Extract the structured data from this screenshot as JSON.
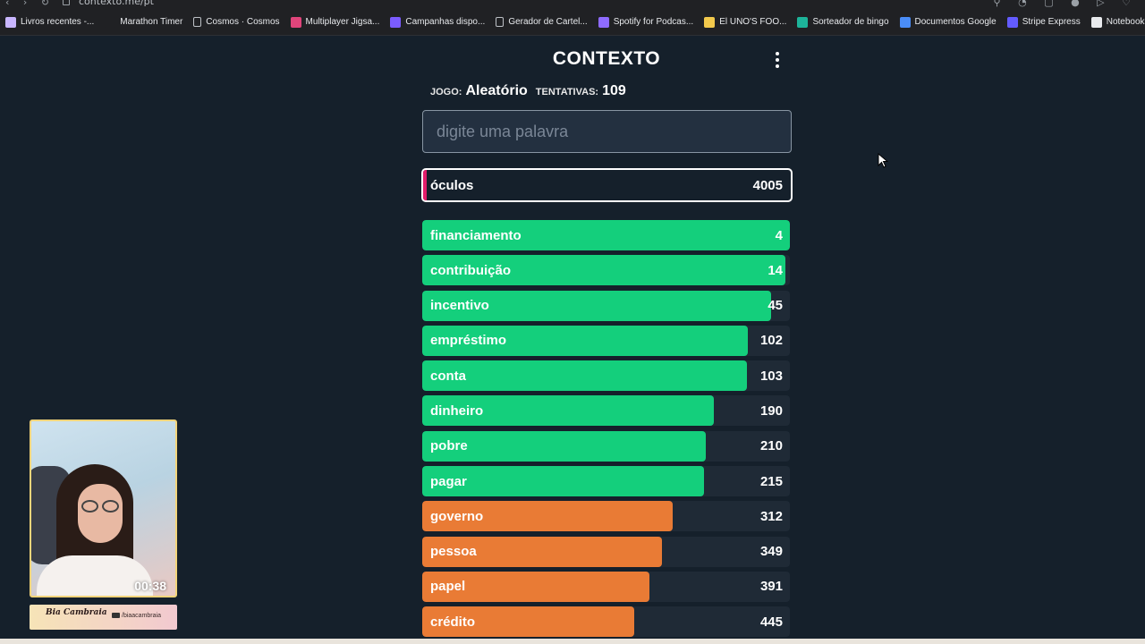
{
  "browser": {
    "url": "contexto.me/pt",
    "bookmarks": [
      {
        "label": "Livros recentes -...",
        "icon": "book-icon",
        "color": "#c9b6ff"
      },
      {
        "label": "Marathon Timer",
        "icon": "timer-icon",
        "color": "#202124"
      },
      {
        "label": "Cosmos · Cosmos",
        "icon": "doc-icon",
        "color": "#bdc1c6"
      },
      {
        "label": "Multiplayer Jigsa...",
        "icon": "puzzle-icon",
        "color": "#e0457b"
      },
      {
        "label": "Campanhas dispo...",
        "icon": "campaign-icon",
        "color": "#7b5cff"
      },
      {
        "label": "Gerador de Cartel...",
        "icon": "doc-icon",
        "color": "#bdc1c6"
      },
      {
        "label": "Spotify for Podcas...",
        "icon": "podcast-icon",
        "color": "#8e6bff"
      },
      {
        "label": "El UNO'S FOO...",
        "icon": "uno-icon",
        "color": "#f2c94c"
      },
      {
        "label": "Sorteador de bingo",
        "icon": "bingo-icon",
        "color": "#1db49a"
      },
      {
        "label": "Documentos Google",
        "icon": "google-docs-icon",
        "color": "#4a8df8"
      },
      {
        "label": "Stripe Express",
        "icon": "stripe-icon",
        "color": "#635bff"
      },
      {
        "label": "NotebookLM",
        "icon": "notebooklm-icon",
        "color": "#e8eaed"
      }
    ]
  },
  "game": {
    "title": "CONTEXTO",
    "game_label": "JOGO:",
    "game_value": "Aleatório",
    "attempts_label": "TENTATIVAS:",
    "attempts_value": "109",
    "input_placeholder": "digite uma palavra",
    "last_guess": {
      "word": "óculos",
      "distance": "4005",
      "accent_color": "#e21c6a"
    },
    "guesses": [
      {
        "word": "financiamento",
        "distance": "4",
        "fill": 1.0,
        "color": "#14cf7c"
      },
      {
        "word": "contribuição",
        "distance": "14",
        "fill": 0.988,
        "color": "#14cf7c"
      },
      {
        "word": "incentivo",
        "distance": "45",
        "fill": 0.949,
        "color": "#14cf7c"
      },
      {
        "word": "empréstimo",
        "distance": "102",
        "fill": 0.885,
        "color": "#14cf7c"
      },
      {
        "word": "conta",
        "distance": "103",
        "fill": 0.883,
        "color": "#14cf7c"
      },
      {
        "word": "dinheiro",
        "distance": "190",
        "fill": 0.793,
        "color": "#14cf7c"
      },
      {
        "word": "pobre",
        "distance": "210",
        "fill": 0.772,
        "color": "#14cf7c"
      },
      {
        "word": "pagar",
        "distance": "215",
        "fill": 0.767,
        "color": "#14cf7c"
      },
      {
        "word": "governo",
        "distance": "312",
        "fill": 0.681,
        "color": "#e97b35"
      },
      {
        "word": "pessoa",
        "distance": "349",
        "fill": 0.652,
        "color": "#e97b35"
      },
      {
        "word": "papel",
        "distance": "391",
        "fill": 0.618,
        "color": "#e97b35"
      },
      {
        "word": "crédito",
        "distance": "445",
        "fill": 0.577,
        "color": "#e97b35"
      }
    ]
  },
  "overlay": {
    "timer": "00:38",
    "logo": "Bia Cambraia",
    "handle": "/biaacambraia"
  }
}
